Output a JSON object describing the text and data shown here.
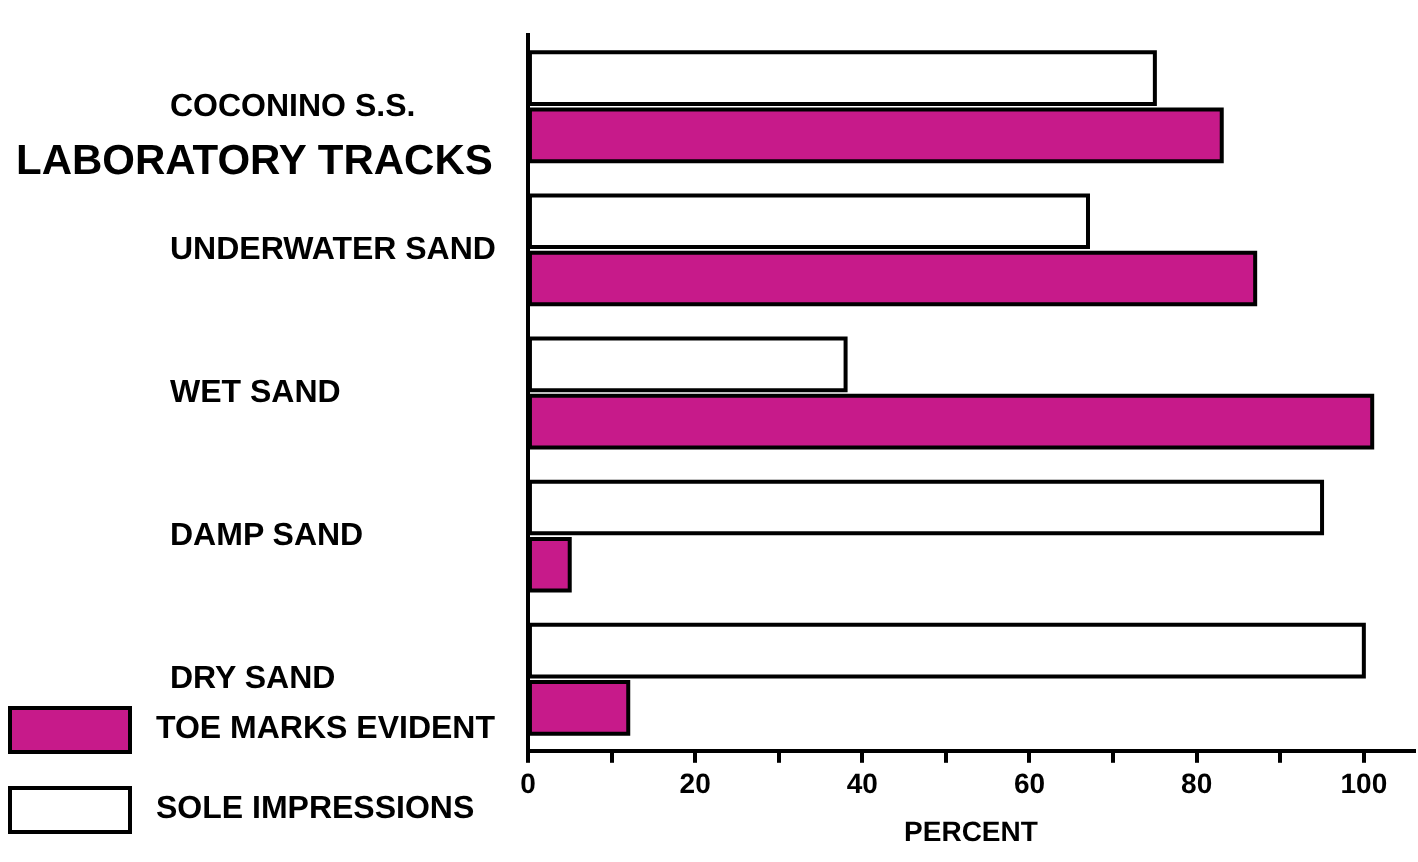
{
  "chart_data": {
    "type": "bar",
    "orientation": "horizontal",
    "xlabel": "PERCENT",
    "categories": [
      "COCONINO S.S.",
      "UNDERWATER SAND",
      "WET SAND",
      "DAMP SAND",
      "DRY SAND"
    ],
    "series": [
      {
        "name": "TOE MARKS EVIDENT",
        "color": "#c71a8a",
        "values": [
          83,
          87,
          101,
          5,
          12
        ]
      },
      {
        "name": "SOLE IMPRESSIONS",
        "color": "#ffffff",
        "values": [
          75,
          67,
          38,
          95,
          100
        ]
      }
    ],
    "xlim": [
      0,
      106
    ],
    "xticks": [
      0,
      {
        "value": 10,
        "label": null
      },
      20,
      {
        "value": 30,
        "label": null
      },
      40,
      {
        "value": 50,
        "label": null
      },
      60,
      {
        "value": 70,
        "label": null
      },
      80,
      {
        "value": 90,
        "label": null
      },
      100
    ],
    "annotations": [
      "LABORATORY TRACKS"
    ],
    "grid": false,
    "legend": "bottom left"
  }
}
